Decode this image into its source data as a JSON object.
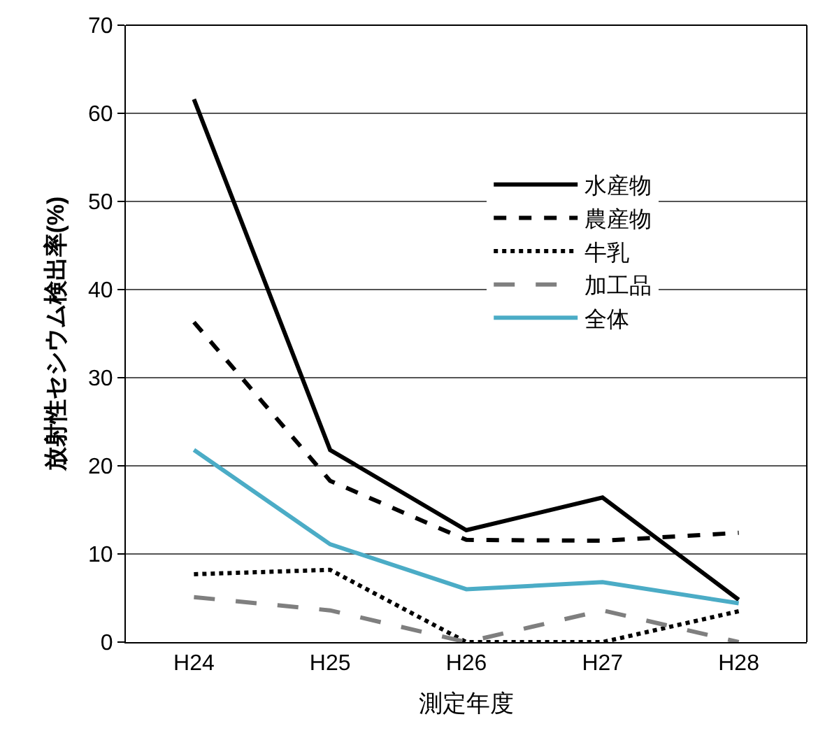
{
  "chart_data": {
    "type": "line",
    "xlabel": "測定年度",
    "ylabel": "放射性セシウム検出率(%)",
    "categories": [
      "H24",
      "H25",
      "H26",
      "H27",
      "H28"
    ],
    "series": [
      {
        "name": "水産物",
        "color": "#000000",
        "line_style": "solid",
        "values": [
          61.6,
          21.8,
          12.7,
          16.4,
          4.8
        ]
      },
      {
        "name": "農産物",
        "color": "#000000",
        "line_style": "dashed",
        "values": [
          36.3,
          18.3,
          11.6,
          11.5,
          12.4
        ]
      },
      {
        "name": "牛乳",
        "color": "#000000",
        "line_style": "dotted",
        "values": [
          7.7,
          8.2,
          0,
          0,
          3.5
        ]
      },
      {
        "name": "加工品",
        "color": "#7f7f7f",
        "line_style": "longdash",
        "values": [
          5.1,
          3.6,
          0,
          3.6,
          0
        ]
      },
      {
        "name": "全体",
        "color": "#4bacc6",
        "line_style": "solid",
        "values": [
          21.8,
          11.1,
          6.0,
          6.8,
          4.4
        ]
      }
    ],
    "ylim": [
      0,
      70
    ],
    "yticks": [
      0,
      10,
      20,
      30,
      40,
      50,
      60,
      70
    ],
    "grid": "y",
    "legend": "right",
    "marker": "none"
  }
}
